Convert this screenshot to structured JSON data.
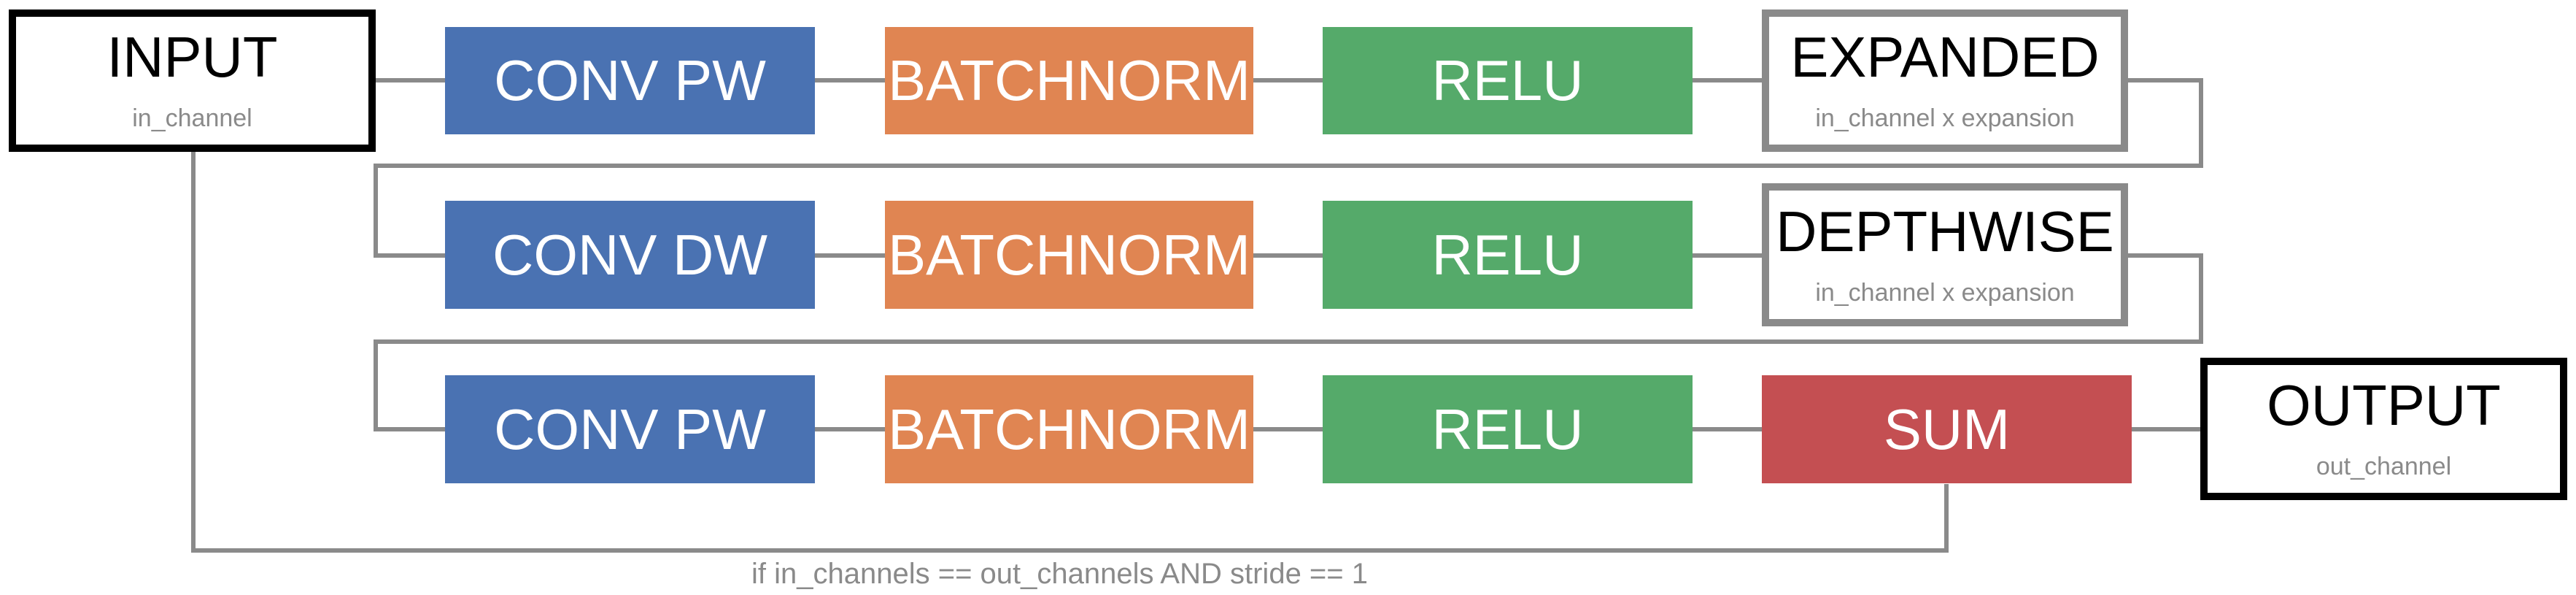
{
  "colors": {
    "conv": "#4a72b2",
    "batchnorm": "#e08552",
    "relu": "#55aa6a",
    "sum": "#c44f52",
    "wire": "#8a8a8a"
  },
  "input": {
    "title": "INPUT",
    "subtitle": "in_channel"
  },
  "row1": {
    "conv": "CONV PW",
    "batchnorm": "BATCHNORM",
    "relu": "RELU",
    "result_title": "EXPANDED",
    "result_subtitle": "in_channel x expansion"
  },
  "row2": {
    "conv": "CONV DW",
    "batchnorm": "BATCHNORM",
    "relu": "RELU",
    "result_title": "DEPTHWISE",
    "result_subtitle": "in_channel x expansion"
  },
  "row3": {
    "conv": "CONV PW",
    "batchnorm": "BATCHNORM",
    "relu": "RELU",
    "sum": "SUM"
  },
  "output": {
    "title": "OUTPUT",
    "subtitle": "out_channel"
  },
  "skip_condition": "if in_channels == out_channels AND stride == 1"
}
